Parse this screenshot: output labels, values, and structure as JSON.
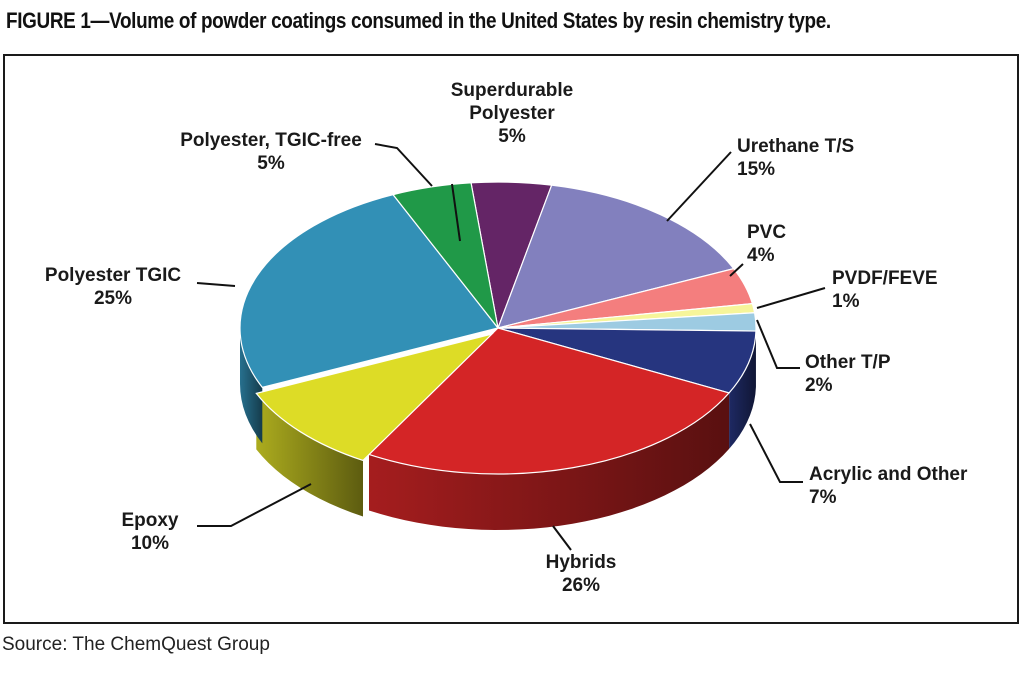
{
  "figure_title": "FIGURE 1—Volume of powder coatings consumed in the United States by resin chemistry type.",
  "source": "Source: The ChemQuest Group",
  "chart_data": {
    "type": "pie",
    "style": "3d-exploded-tilted",
    "title": "FIGURE 1—Volume of powder coatings consumed in the United States by resin chemistry type.",
    "unit": "%",
    "slices": [
      {
        "name": "Superdurable Polyester",
        "label_lines": [
          "Superdurable",
          "Polyester"
        ],
        "value": 5,
        "label": "5%",
        "color": "#642566"
      },
      {
        "name": "Urethane T/S",
        "label_lines": [
          "Urethane T/S"
        ],
        "value": 15,
        "label": "15%",
        "color": "#8280be"
      },
      {
        "name": "PVC",
        "label_lines": [
          "PVC"
        ],
        "value": 4,
        "label": "4%",
        "color": "#f47e7e"
      },
      {
        "name": "PVDF/FEVE",
        "label_lines": [
          "PVDF/FEVE"
        ],
        "value": 1,
        "label": "1%",
        "color": "#f6f59a"
      },
      {
        "name": "Other T/P",
        "label_lines": [
          "Other T/P"
        ],
        "value": 2,
        "label": "2%",
        "color": "#9dcbe2"
      },
      {
        "name": "Acrylic and Other",
        "label_lines": [
          "Acrylic and Other"
        ],
        "value": 7,
        "label": "7%",
        "color": "#26357f"
      },
      {
        "name": "Hybrids",
        "label_lines": [
          "Hybrids"
        ],
        "value": 26,
        "label": "26%",
        "color": "#d42526"
      },
      {
        "name": "Epoxy",
        "label_lines": [
          "Epoxy"
        ],
        "value": 10,
        "label": "10%",
        "color": "#dddc26"
      },
      {
        "name": "Polyester TGIC",
        "label_lines": [
          "Polyester TGIC"
        ],
        "value": 25,
        "label": "25%",
        "color": "#3290b6"
      },
      {
        "name": "Polyester, TGIC-free",
        "label_lines": [
          "Polyester, TGIC-free"
        ],
        "value": 5,
        "label": "5%",
        "color": "#209948"
      }
    ]
  }
}
